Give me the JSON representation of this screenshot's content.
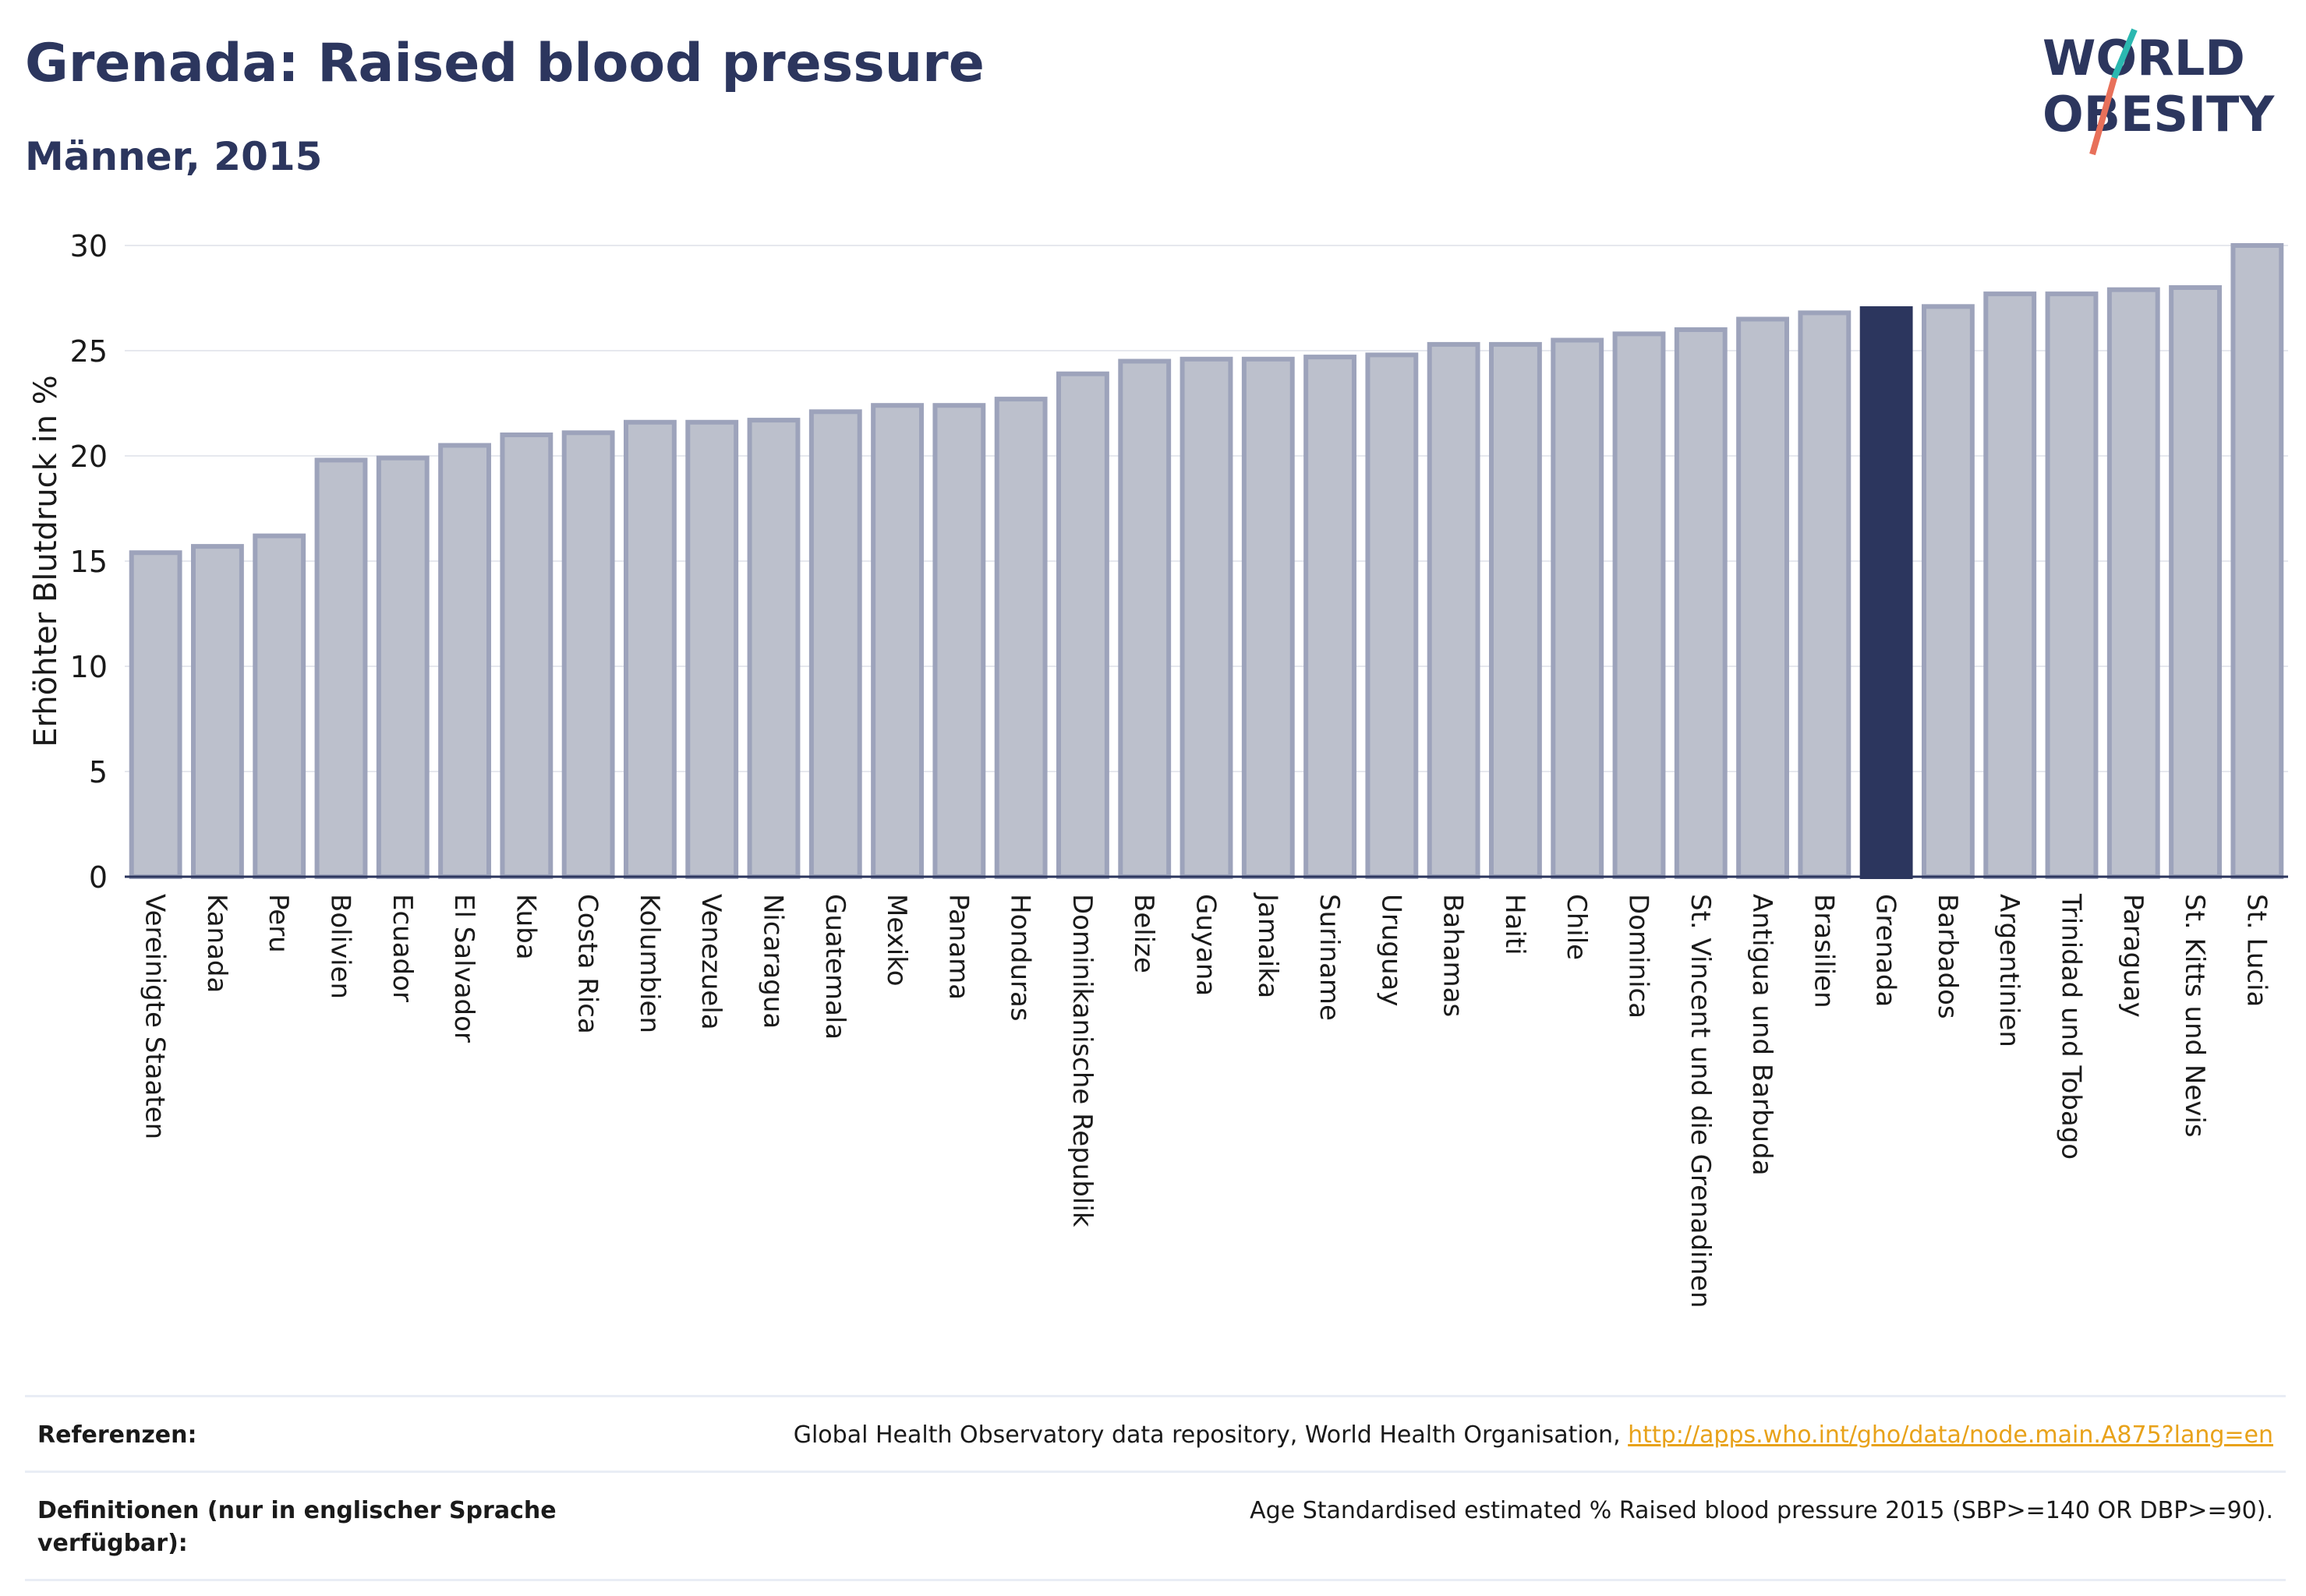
{
  "header": {
    "title": "Grenada: Raised blood pressure",
    "subtitle": "Männer, 2015"
  },
  "logo": {
    "line1": "WORLD",
    "line2": "OBESITY",
    "colors": {
      "text": "#2c365e",
      "slash_top": "#2bb8b0",
      "slash_bottom": "#e8705a"
    }
  },
  "chart_data": {
    "type": "bar",
    "ylabel": "Erhöhter Blutdruck in %",
    "xlabel": "",
    "ylim": [
      0,
      30
    ],
    "yticks": [
      0,
      5,
      10,
      15,
      20,
      25,
      30
    ],
    "grid": true,
    "categories": [
      "Vereinigte Staaten",
      "Kanada",
      "Peru",
      "Bolivien",
      "Ecuador",
      "El Salvador",
      "Kuba",
      "Costa Rica",
      "Kolumbien",
      "Venezuela",
      "Nicaragua",
      "Guatemala",
      "Mexiko",
      "Panama",
      "Honduras",
      "Dominikanische Republik",
      "Belize",
      "Guyana",
      "Jamaika",
      "Suriname",
      "Uruguay",
      "Bahamas",
      "Haiti",
      "Chile",
      "Dominica",
      "St. Vincent und die Grenadinen",
      "Antigua und Barbuda",
      "Brasilien",
      "Grenada",
      "Barbados",
      "Argentinien",
      "Trinidad und Tobago",
      "Paraguay",
      "St. Kitts und Nevis",
      "St. Lucia"
    ],
    "values": [
      15.4,
      15.7,
      16.2,
      19.8,
      19.9,
      20.5,
      21.0,
      21.1,
      21.6,
      21.6,
      21.7,
      22.1,
      22.4,
      22.4,
      22.7,
      23.9,
      24.5,
      24.6,
      24.6,
      24.7,
      24.8,
      25.3,
      25.3,
      25.5,
      25.8,
      26.0,
      26.5,
      26.8,
      27.0,
      27.1,
      27.7,
      27.7,
      27.9,
      28.0,
      30.0
    ],
    "highlight": "Grenada",
    "colors": {
      "bar": "#bcc0cc",
      "bar_border": "#9da3bb",
      "highlight": "#2c365e",
      "grid": "#e6e8ee"
    }
  },
  "footer": {
    "references_label": "Referenzen:",
    "references_text": "Global Health Observatory data repository, World Health Organisation, ",
    "references_link": "http://apps.who.int/gho/data/node.main.A875?lang=en",
    "definitions_label": "Definitionen (nur in englischer Sprache verfügbar):",
    "definitions_text": "Age Standardised estimated % Raised blood pressure 2015 (SBP>=140 OR DBP>=90)."
  }
}
